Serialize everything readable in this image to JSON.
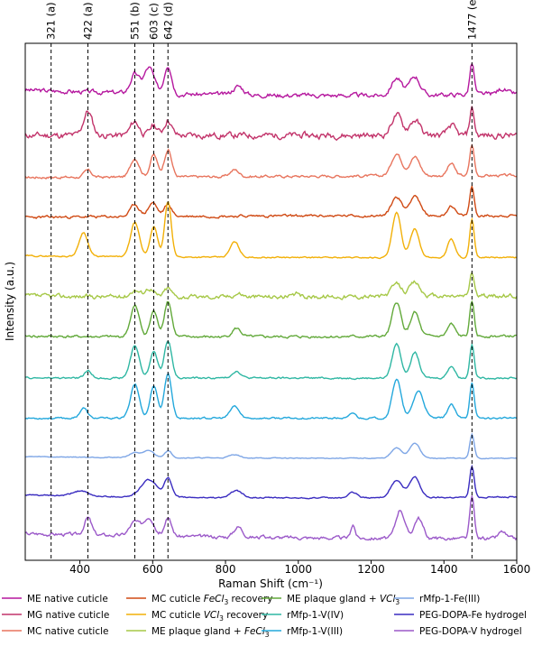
{
  "chart_data": {
    "type": "line",
    "xlabel": "Raman Shift (cm⁻¹)",
    "ylabel": "Intensity (a.u.)",
    "xlim": [
      250,
      1600
    ],
    "x_ticks": [
      400,
      600,
      800,
      1000,
      1200,
      1400,
      1600
    ],
    "y_ticks": "none",
    "grid": false,
    "legend": "bottom, 4 columns",
    "peak_markers": [
      {
        "x": 321,
        "label": "321 (a)"
      },
      {
        "x": 422,
        "label": "422 (a)"
      },
      {
        "x": 551,
        "label": "551 (b)"
      },
      {
        "x": 603,
        "label": "603 (c)"
      },
      {
        "x": 642,
        "label": "642 (d)"
      },
      {
        "x": 1477,
        "label": "1477 (e)"
      }
    ],
    "series": [
      {
        "name": "ME native cuticle",
        "color": "#b5179e",
        "offset": 11,
        "noise": 0.05,
        "seed": 3,
        "baseline": [
          0.2,
          0.05,
          0.0,
          0.1
        ],
        "peaks": [
          [
            551,
            0.55,
            12
          ],
          [
            590,
            0.75,
            14
          ],
          [
            642,
            0.85,
            10
          ],
          [
            835,
            0.25,
            14
          ],
          [
            1270,
            0.5,
            14
          ],
          [
            1320,
            0.55,
            14
          ],
          [
            1477,
            0.9,
            6
          ],
          [
            1560,
            0.15,
            12
          ]
        ]
      },
      {
        "name": "MG native cuticle",
        "color": "#c2336a",
        "offset": 10,
        "noise": 0.07,
        "seed": 11,
        "baseline": [
          0.05,
          0.05,
          0.05,
          0.05
        ],
        "peaks": [
          [
            422,
            0.7,
            12
          ],
          [
            551,
            0.4,
            12
          ],
          [
            603,
            0.3,
            10
          ],
          [
            642,
            0.45,
            10
          ],
          [
            1270,
            0.6,
            14
          ],
          [
            1320,
            0.45,
            14
          ],
          [
            1420,
            0.3,
            10
          ],
          [
            1477,
            0.8,
            6
          ]
        ]
      },
      {
        "name": "MC native cuticle",
        "color": "#e8755e",
        "offset": 9,
        "noise": 0.03,
        "seed": 17,
        "baseline": [
          0.0,
          0.0,
          0.05,
          0.05
        ],
        "peaks": [
          [
            422,
            0.2,
            10
          ],
          [
            551,
            0.55,
            12
          ],
          [
            603,
            0.65,
            10
          ],
          [
            642,
            0.8,
            10
          ],
          [
            825,
            0.2,
            12
          ],
          [
            1270,
            0.65,
            14
          ],
          [
            1320,
            0.55,
            14
          ],
          [
            1420,
            0.35,
            10
          ],
          [
            1477,
            0.9,
            6
          ]
        ]
      },
      {
        "name": "MC cuticle FeCl3 recovery",
        "color": "#d04a14",
        "offset": 8,
        "noise": 0.03,
        "seed": 23,
        "baseline": [
          0.0,
          0.05,
          0.05,
          0.05
        ],
        "peaks": [
          [
            551,
            0.35,
            12
          ],
          [
            600,
            0.4,
            12
          ],
          [
            642,
            0.35,
            10
          ],
          [
            1270,
            0.55,
            14
          ],
          [
            1320,
            0.6,
            14
          ],
          [
            1420,
            0.3,
            10
          ],
          [
            1477,
            0.85,
            6
          ]
        ]
      },
      {
        "name": "MC cuticle VCl3 recovery",
        "color": "#f2b008",
        "offset": 7,
        "noise": 0.015,
        "seed": 29,
        "baseline": [
          0.05,
          0.0,
          0.0,
          0.0
        ],
        "peaks": [
          [
            410,
            0.7,
            12
          ],
          [
            551,
            1.0,
            12
          ],
          [
            603,
            0.9,
            10
          ],
          [
            642,
            1.6,
            9
          ],
          [
            825,
            0.45,
            12
          ],
          [
            1270,
            1.3,
            12
          ],
          [
            1320,
            0.85,
            12
          ],
          [
            1420,
            0.55,
            10
          ],
          [
            1477,
            1.1,
            6
          ]
        ]
      },
      {
        "name": "ME plaque gland + FeCl3",
        "color": "#a6c847",
        "offset": 6,
        "noise": 0.05,
        "seed": 37,
        "baseline": [
          0.05,
          0.0,
          0.05,
          0.05
        ],
        "peaks": [
          [
            551,
            0.2,
            12
          ],
          [
            590,
            0.25,
            12
          ],
          [
            642,
            0.25,
            10
          ],
          [
            835,
            0.1,
            12
          ],
          [
            1000,
            0.1,
            6
          ],
          [
            1270,
            0.35,
            14
          ],
          [
            1320,
            0.4,
            14
          ],
          [
            1477,
            0.7,
            6
          ]
        ]
      },
      {
        "name": "ME plaque gland + VCl3",
        "color": "#62a93a",
        "offset": 5,
        "noise": 0.03,
        "seed": 41,
        "baseline": [
          0.05,
          0.0,
          0.05,
          0.05
        ],
        "peaks": [
          [
            551,
            0.9,
            12
          ],
          [
            603,
            0.75,
            10
          ],
          [
            642,
            1.05,
            10
          ],
          [
            830,
            0.25,
            12
          ],
          [
            1270,
            1.0,
            12
          ],
          [
            1320,
            0.7,
            12
          ],
          [
            1420,
            0.35,
            10
          ],
          [
            1477,
            1.0,
            6
          ]
        ]
      },
      {
        "name": "rMfp-1-V(IV)",
        "color": "#2fb7a3",
        "offset": 4,
        "noise": 0.02,
        "seed": 47,
        "baseline": [
          0.0,
          0.0,
          0.0,
          0.0
        ],
        "peaks": [
          [
            422,
            0.2,
            10
          ],
          [
            551,
            0.95,
            12
          ],
          [
            603,
            0.8,
            10
          ],
          [
            642,
            1.1,
            10
          ],
          [
            830,
            0.2,
            12
          ],
          [
            1270,
            1.0,
            12
          ],
          [
            1320,
            0.75,
            12
          ],
          [
            1420,
            0.35,
            10
          ],
          [
            1477,
            1.0,
            6
          ]
        ]
      },
      {
        "name": "rMfp-1-V(III)",
        "color": "#24a8dc",
        "offset": 3,
        "noise": 0.02,
        "seed": 53,
        "baseline": [
          0.0,
          0.0,
          0.0,
          0.0
        ],
        "peaks": [
          [
            410,
            0.3,
            10
          ],
          [
            551,
            1.0,
            12
          ],
          [
            603,
            0.95,
            10
          ],
          [
            642,
            1.3,
            10
          ],
          [
            825,
            0.35,
            12
          ],
          [
            1150,
            0.15,
            8
          ],
          [
            1270,
            1.15,
            12
          ],
          [
            1330,
            0.8,
            14
          ],
          [
            1420,
            0.4,
            10
          ],
          [
            1477,
            1.05,
            6
          ]
        ]
      },
      {
        "name": "rMfp-1-Fe(III)",
        "color": "#7ea6e6",
        "offset": 2,
        "noise": 0.01,
        "seed": 59,
        "baseline": [
          0.05,
          0.0,
          0.0,
          0.0
        ],
        "peaks": [
          [
            551,
            0.15,
            14
          ],
          [
            590,
            0.2,
            14
          ],
          [
            642,
            0.2,
            10
          ],
          [
            825,
            0.1,
            14
          ],
          [
            1270,
            0.3,
            14
          ],
          [
            1320,
            0.45,
            14
          ],
          [
            1477,
            0.7,
            6
          ]
        ]
      },
      {
        "name": "PEG-DOPA-Fe hydrogel",
        "color": "#3a2cc0",
        "offset": 1,
        "noise": 0.015,
        "seed": 61,
        "baseline": [
          0.1,
          0.0,
          0.0,
          0.05
        ],
        "peaks": [
          [
            400,
            0.15,
            20
          ],
          [
            590,
            0.5,
            22
          ],
          [
            642,
            0.55,
            10
          ],
          [
            830,
            0.2,
            16
          ],
          [
            1150,
            0.15,
            12
          ],
          [
            1270,
            0.5,
            16
          ],
          [
            1320,
            0.6,
            14
          ],
          [
            1477,
            0.9,
            6
          ]
        ]
      },
      {
        "name": "PEG-DOPA-V hydrogel",
        "color": "#9b59c9",
        "offset": 0,
        "noise": 0.04,
        "seed": 67,
        "baseline": [
          0.15,
          0.05,
          0.0,
          0.0
        ],
        "peaks": [
          [
            422,
            0.5,
            10
          ],
          [
            551,
            0.4,
            14
          ],
          [
            590,
            0.55,
            14
          ],
          [
            642,
            0.5,
            10
          ],
          [
            835,
            0.3,
            12
          ],
          [
            1150,
            0.4,
            6
          ],
          [
            1280,
            0.85,
            12
          ],
          [
            1330,
            0.6,
            12
          ],
          [
            1477,
            1.2,
            6
          ],
          [
            1560,
            0.2,
            10
          ]
        ]
      }
    ]
  }
}
